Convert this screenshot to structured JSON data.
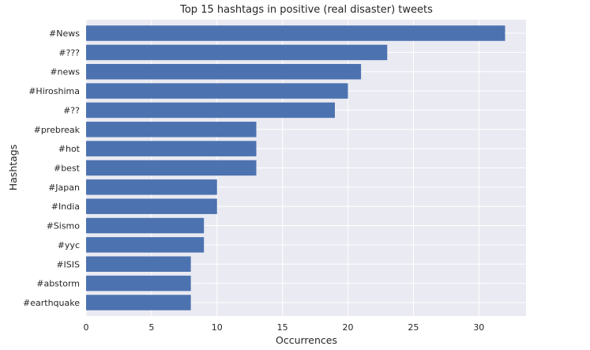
{
  "chart_data": {
    "type": "bar",
    "orientation": "horizontal",
    "title": "Top 15 hashtags in positive (real disaster) tweets",
    "xlabel": "Occurrences",
    "ylabel": "Hashtags",
    "categories": [
      "#News",
      "#???",
      "#news",
      "#Hiroshima",
      "#??",
      "#prebreak",
      "#hot",
      "#best",
      "#Japan",
      "#India",
      "#Sismo",
      "#yyc",
      "#ISIS",
      "#abstorm",
      "#earthquake"
    ],
    "values": [
      32,
      23,
      21,
      20,
      19,
      13,
      13,
      13,
      10,
      10,
      9,
      9,
      8,
      8,
      8
    ],
    "xlim": [
      0,
      33.6
    ],
    "xticks": [
      0,
      5,
      10,
      15,
      20,
      25,
      30
    ],
    "grid": true,
    "colors": {
      "bar": "#4c72b0",
      "background": "#eaeaf2",
      "grid": "#ffffff"
    }
  }
}
